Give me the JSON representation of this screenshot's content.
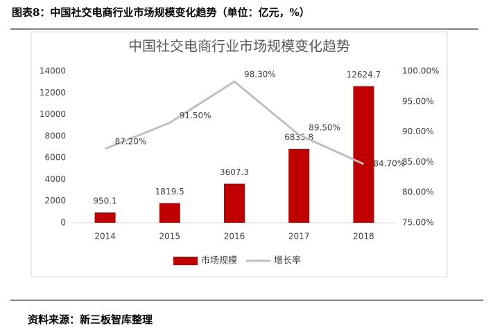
{
  "header": {
    "title": "图表8：中国社交电商行业市场规模变化趋势（单位：亿元，%）"
  },
  "footer": {
    "source": "资料来源：新三板智库整理"
  },
  "chart_data": {
    "type": "bar",
    "title": "中国社交电商行业市场规模变化趋势",
    "categories": [
      "2014",
      "2015",
      "2016",
      "2017",
      "2018"
    ],
    "series": [
      {
        "name": "市场规模",
        "type": "bar",
        "color": "#c00000",
        "values": [
          950.1,
          1819.5,
          3607.3,
          6835.8,
          12624.7
        ]
      },
      {
        "name": "增长率",
        "type": "line",
        "axis": "y2",
        "color": "#bfbfbf",
        "values": [
          87.2,
          91.5,
          98.3,
          89.5,
          84.7
        ],
        "value_labels": [
          "87.20%",
          "91.50%",
          "98.30%",
          "89.50%",
          "84.70%"
        ]
      }
    ],
    "ylim": [
      0,
      14000
    ],
    "yticks": [
      0,
      2000,
      4000,
      6000,
      8000,
      10000,
      12000,
      14000
    ],
    "y2lim": [
      75,
      100
    ],
    "y2ticks": [
      {
        "value": 75,
        "label": "75.00%"
      },
      {
        "value": 80,
        "label": "80.00%"
      },
      {
        "value": 85,
        "label": "85.00%"
      },
      {
        "value": 90,
        "label": "90.00%"
      },
      {
        "value": 95,
        "label": "95.00%"
      },
      {
        "value": 100,
        "label": "100.00%"
      }
    ],
    "grid": false,
    "legend": "bottom"
  }
}
